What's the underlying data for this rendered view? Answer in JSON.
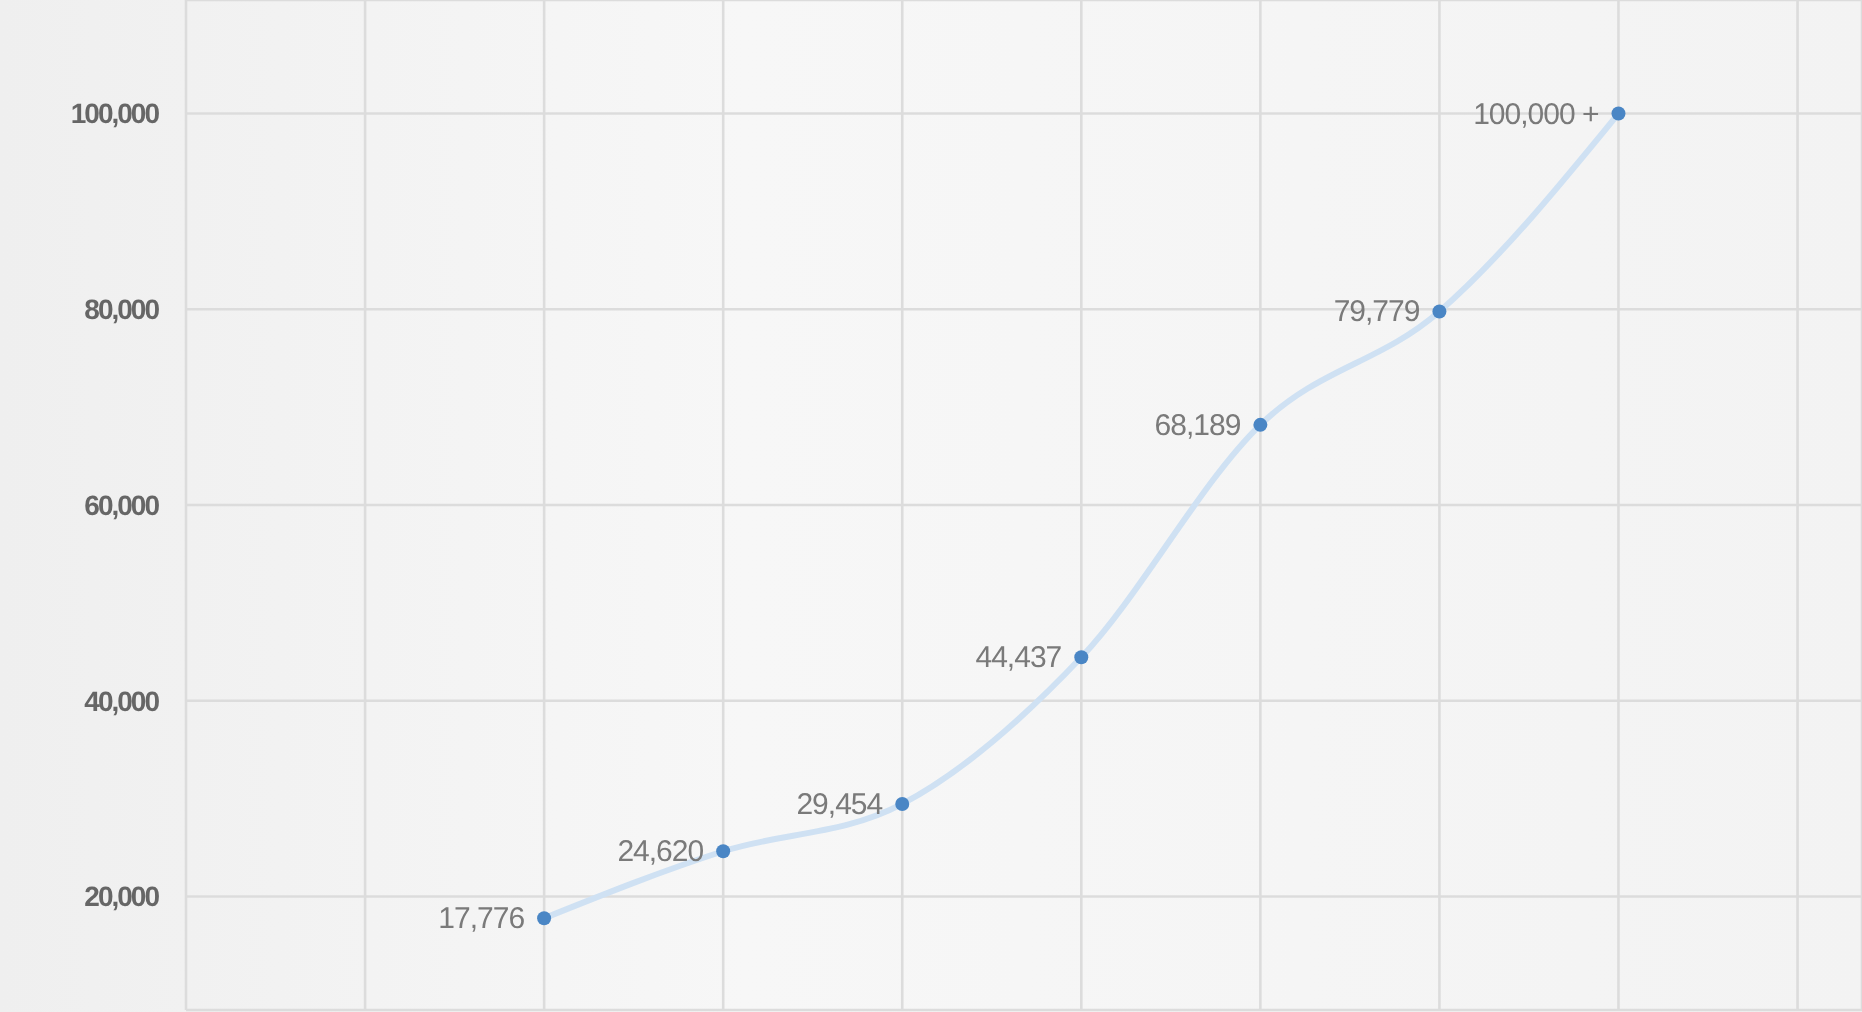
{
  "chart_data": {
    "type": "line",
    "categories": [
      null,
      null,
      null,
      null,
      null,
      null,
      null,
      null,
      null,
      null
    ],
    "values": [
      null,
      null,
      17776,
      24620,
      29454,
      44437,
      68189,
      79779,
      100000,
      null
    ],
    "value_labels": [
      null,
      null,
      "17,776",
      "24,620",
      "29,454",
      "44,437",
      "68,189",
      "79,779",
      "100,000 +",
      null
    ],
    "color": "#cfe1f3",
    "marker": "circle",
    "line_style": "solid",
    "ylim": [
      8400,
      111600
    ],
    "yticks": [
      {
        "value": 20000,
        "label": "20,000"
      },
      {
        "value": 40000,
        "label": "40,000"
      },
      {
        "value": 60000,
        "label": "60,000"
      },
      {
        "value": 80000,
        "label": "80,000"
      },
      {
        "value": 100000,
        "label": "100,000"
      }
    ],
    "grid": true
  }
}
